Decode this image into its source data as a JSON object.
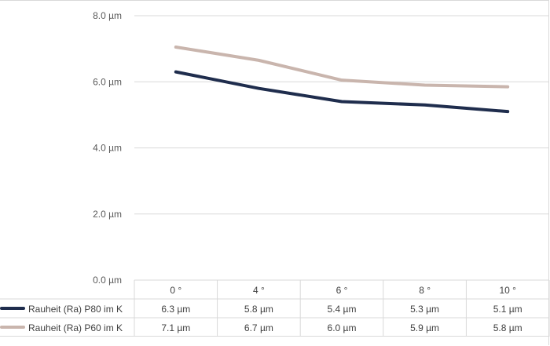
{
  "chart_data": {
    "type": "line",
    "title": "",
    "xlabel": "",
    "ylabel": "",
    "categories": [
      "0 °",
      "4 °",
      "6 °",
      "8 °",
      "10 °"
    ],
    "ylim": [
      0,
      8
    ],
    "y_ticks": [
      "0.0 µm",
      "2.0 µm",
      "4.0 µm",
      "6.0 µm",
      "8.0 µm"
    ],
    "y_tick_values": [
      0,
      2,
      4,
      6,
      8
    ],
    "grid": true,
    "legend": "data table below chart",
    "series": [
      {
        "name": "Rauheit (Ra) P80 im K",
        "color": "#1f2d4d",
        "values": [
          6.3,
          5.8,
          5.4,
          5.3,
          5.1
        ],
        "table_values": [
          "6.3 µm",
          "5.8 µm",
          "5.4 µm",
          "5.3 µm",
          "5.1 µm"
        ]
      },
      {
        "name": "Rauheit (Ra) P60 im K",
        "color": "#c9b5ad",
        "values": [
          7.05,
          6.65,
          6.05,
          5.9,
          5.85
        ],
        "table_values": [
          "7.1 µm",
          "6.7 µm",
          "6.0 µm",
          "5.9 µm",
          "5.8 µm"
        ]
      }
    ]
  }
}
